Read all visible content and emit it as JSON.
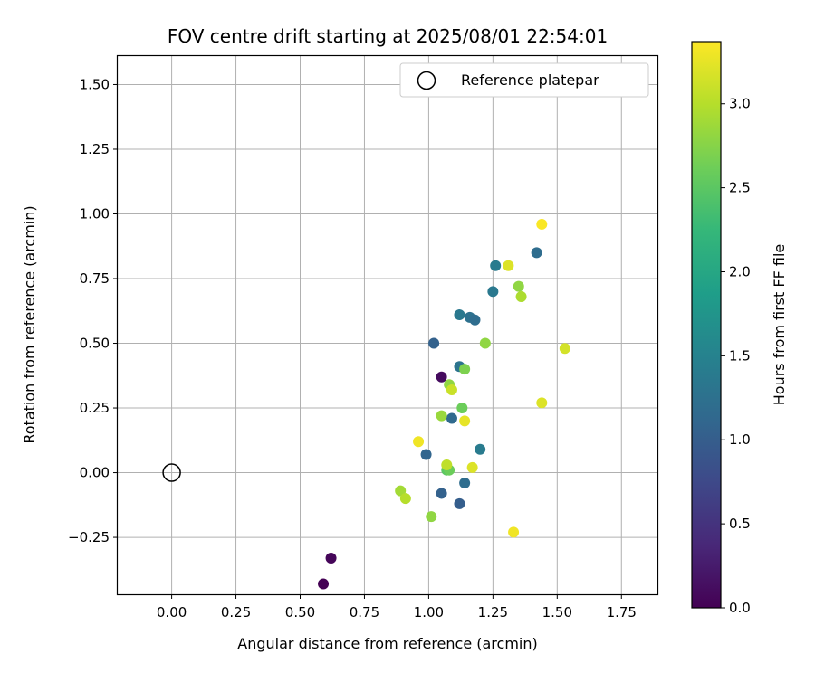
{
  "chart_data": {
    "type": "scatter",
    "title": "FOV centre drift starting at 2025/08/01 22:54:01",
    "xlabel": "Angular distance from reference (arcmin)",
    "ylabel": "Rotation from reference (arcmin)",
    "xlim": [
      -0.21,
      1.89
    ],
    "ylim": [
      -0.47,
      1.61
    ],
    "xticks": [
      0.0,
      0.25,
      0.5,
      0.75,
      1.0,
      1.25,
      1.5,
      1.75
    ],
    "xtick_labels": [
      "0.00",
      "0.25",
      "0.50",
      "0.75",
      "1.00",
      "1.25",
      "1.50",
      "1.75"
    ],
    "yticks": [
      -0.25,
      0.0,
      0.25,
      0.5,
      0.75,
      1.0,
      1.25,
      1.5
    ],
    "ytick_labels": [
      "−0.25",
      "0.00",
      "0.25",
      "0.50",
      "0.75",
      "1.00",
      "1.25",
      "1.50"
    ],
    "grid": true,
    "legend": {
      "position": "top-right",
      "entries": [
        "Reference platepar"
      ]
    },
    "reference_point": {
      "x": 0.0,
      "y": 0.0,
      "marker": "open-circle"
    },
    "colorbar": {
      "label": "Hours from first FF file",
      "colormap": "viridis",
      "min": 0.0,
      "max": 3.37,
      "ticks": [
        0.0,
        0.5,
        1.0,
        1.5,
        2.0,
        2.5,
        3.0
      ],
      "tick_labels": [
        "0.0",
        "0.5",
        "1.0",
        "1.5",
        "2.0",
        "2.5",
        "3.0"
      ],
      "colors": [
        "#440154",
        "#482878",
        "#3e4989",
        "#31688e",
        "#26828e",
        "#1f9e89",
        "#35b779",
        "#6ece58",
        "#b5de2b",
        "#fde725"
      ]
    },
    "points": [
      {
        "x": 0.59,
        "y": -0.43,
        "c": 0.0
      },
      {
        "x": 0.62,
        "y": -0.33,
        "c": 0.05
      },
      {
        "x": 1.05,
        "y": 0.37,
        "c": 0.1
      },
      {
        "x": 1.02,
        "y": 0.5,
        "c": 1.05
      },
      {
        "x": 0.99,
        "y": 0.07,
        "c": 1.1
      },
      {
        "x": 1.05,
        "y": -0.08,
        "c": 1.05
      },
      {
        "x": 1.12,
        "y": -0.12,
        "c": 1.0
      },
      {
        "x": 1.14,
        "y": -0.04,
        "c": 1.2
      },
      {
        "x": 1.09,
        "y": 0.21,
        "c": 1.15
      },
      {
        "x": 1.12,
        "y": 0.41,
        "c": 1.3
      },
      {
        "x": 1.12,
        "y": 0.61,
        "c": 1.35
      },
      {
        "x": 1.16,
        "y": 0.6,
        "c": 1.25
      },
      {
        "x": 1.18,
        "y": 0.59,
        "c": 1.2
      },
      {
        "x": 1.2,
        "y": 0.09,
        "c": 1.4
      },
      {
        "x": 1.25,
        "y": 0.7,
        "c": 1.35
      },
      {
        "x": 1.26,
        "y": 0.8,
        "c": 1.4
      },
      {
        "x": 1.42,
        "y": 0.85,
        "c": 1.2
      },
      {
        "x": 1.07,
        "y": 0.01,
        "c": 2.5
      },
      {
        "x": 1.08,
        "y": 0.01,
        "c": 2.6
      },
      {
        "x": 1.13,
        "y": 0.25,
        "c": 2.6
      },
      {
        "x": 1.14,
        "y": 0.4,
        "c": 2.7
      },
      {
        "x": 1.08,
        "y": 0.34,
        "c": 2.8
      },
      {
        "x": 1.05,
        "y": 0.22,
        "c": 2.85
      },
      {
        "x": 1.22,
        "y": 0.5,
        "c": 2.8
      },
      {
        "x": 1.35,
        "y": 0.72,
        "c": 2.8
      },
      {
        "x": 1.36,
        "y": 0.68,
        "c": 2.95
      },
      {
        "x": 1.01,
        "y": -0.17,
        "c": 2.8
      },
      {
        "x": 0.89,
        "y": -0.07,
        "c": 2.9
      },
      {
        "x": 0.91,
        "y": -0.1,
        "c": 3.0
      },
      {
        "x": 1.07,
        "y": 0.03,
        "c": 3.05
      },
      {
        "x": 1.09,
        "y": 0.32,
        "c": 3.1
      },
      {
        "x": 1.14,
        "y": 0.2,
        "c": 3.25
      },
      {
        "x": 0.96,
        "y": 0.12,
        "c": 3.3
      },
      {
        "x": 1.17,
        "y": 0.02,
        "c": 3.2
      },
      {
        "x": 1.31,
        "y": 0.8,
        "c": 3.2
      },
      {
        "x": 1.44,
        "y": 0.96,
        "c": 3.35
      },
      {
        "x": 1.53,
        "y": 0.48,
        "c": 3.15
      },
      {
        "x": 1.44,
        "y": 0.27,
        "c": 3.2
      },
      {
        "x": 1.33,
        "y": -0.23,
        "c": 3.3
      }
    ]
  }
}
